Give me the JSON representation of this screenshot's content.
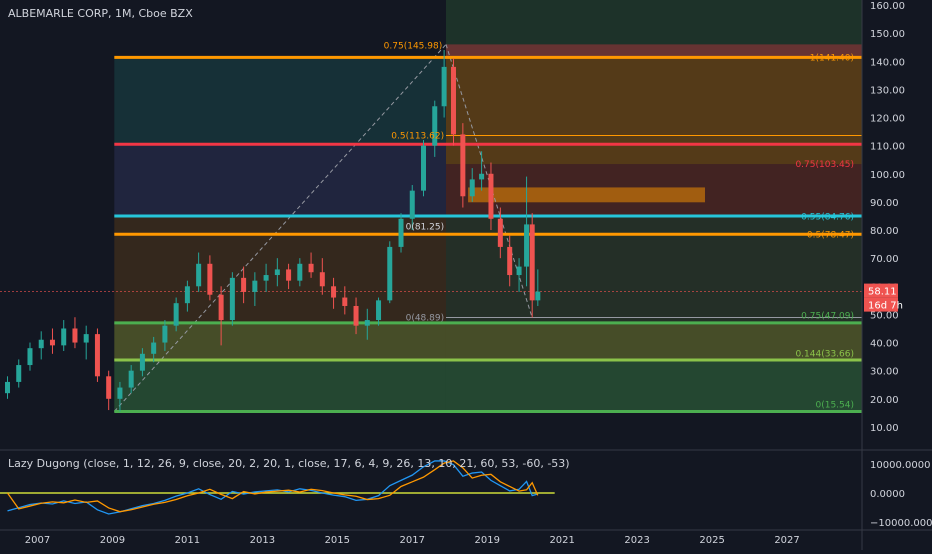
{
  "chart_title": "ALBEMARLE CORP, 1M, Cboe BZX",
  "indicator_title": "Lazy Dugong (close, 1, 12, 26, 9, close, 20, 2, 20, 1, close, 17, 6, 4, 9, 26, 13, 10, 21, 60, 53, -60, -53)",
  "price_badge": "58.11",
  "countdown_badge": "16d 7h",
  "colors": {
    "background": "#131722",
    "up": "#26a69a",
    "down": "#ef5350",
    "axis_text": "#d1d4dc",
    "fib_orange": "#ff9800",
    "red_level": "#f23645",
    "cyan_level": "#22ab94",
    "green_level": "#4caf50",
    "lime_level": "#8bc34a"
  },
  "chart_data": {
    "type": "candlestick",
    "y_axis": {
      "min": 5,
      "max": 160,
      "ticks": [
        "160.00",
        "150.00",
        "140.00",
        "130.00",
        "120.00",
        "110.00",
        "100.00",
        "90.00",
        "80.00",
        "70.00",
        "60.00",
        "50.00",
        "40.00",
        "30.00",
        "20.00",
        "10.00"
      ]
    },
    "x_axis": {
      "min": 2006.0,
      "max": 2029.0,
      "ticks": [
        "2007",
        "2009",
        "2011",
        "2013",
        "2015",
        "2017",
        "2019",
        "2021",
        "2023",
        "2025",
        "2027"
      ]
    },
    "fib_upper": {
      "label_left": "0.75(145.98)",
      "labels": [
        {
          "text": "1(141.40)",
          "value": 141.4
        },
        {
          "text": "0.5(113.62)",
          "value": 113.62
        },
        {
          "text": "0.75(103.45)",
          "value": 103.45
        },
        {
          "text": "0.55(84.76)",
          "value": 84.76
        },
        {
          "text": "0.5(78.47)",
          "value": 78.47
        },
        {
          "text": "0(81.25)",
          "value": 81.25
        },
        {
          "text": "0(48.89)",
          "value": 48.89
        }
      ]
    },
    "horizontal_levels": [
      {
        "value": 141.4,
        "color": "#ff9800"
      },
      {
        "value": 110.5,
        "color": "#f23645"
      },
      {
        "value": 85.0,
        "color": "#26c6da"
      },
      {
        "value": 78.5,
        "color": "#ff9800"
      },
      {
        "value": 47.0,
        "color": "#4caf50"
      },
      {
        "value": 33.8,
        "color": "#8bc34a"
      },
      {
        "value": 15.5,
        "color": "#4caf50"
      }
    ],
    "fib_lower_labels": [
      {
        "text": "0.75(47.09)",
        "value": 47.09
      },
      {
        "text": "0.144(33.66)",
        "value": 33.66
      },
      {
        "text": "0(15.54)",
        "value": 15.54
      }
    ],
    "series": [
      {
        "x": 2006.2,
        "o": 22,
        "h": 28,
        "l": 20,
        "c": 26
      },
      {
        "x": 2006.5,
        "o": 26,
        "h": 34,
        "l": 24,
        "c": 32
      },
      {
        "x": 2006.8,
        "o": 32,
        "h": 40,
        "l": 30,
        "c": 38
      },
      {
        "x": 2007.1,
        "o": 38,
        "h": 44,
        "l": 34,
        "c": 41
      },
      {
        "x": 2007.4,
        "o": 41,
        "h": 45,
        "l": 36,
        "c": 39
      },
      {
        "x": 2007.7,
        "o": 39,
        "h": 48,
        "l": 37,
        "c": 45
      },
      {
        "x": 2008.0,
        "o": 45,
        "h": 49,
        "l": 38,
        "c": 40
      },
      {
        "x": 2008.3,
        "o": 40,
        "h": 46,
        "l": 34,
        "c": 43
      },
      {
        "x": 2008.6,
        "o": 43,
        "h": 45,
        "l": 26,
        "c": 28
      },
      {
        "x": 2008.9,
        "o": 28,
        "h": 30,
        "l": 16,
        "c": 20
      },
      {
        "x": 2009.2,
        "o": 20,
        "h": 26,
        "l": 15.5,
        "c": 24
      },
      {
        "x": 2009.5,
        "o": 24,
        "h": 32,
        "l": 22,
        "c": 30
      },
      {
        "x": 2009.8,
        "o": 30,
        "h": 38,
        "l": 28,
        "c": 36
      },
      {
        "x": 2010.1,
        "o": 36,
        "h": 42,
        "l": 33,
        "c": 40
      },
      {
        "x": 2010.4,
        "o": 40,
        "h": 48,
        "l": 37,
        "c": 46
      },
      {
        "x": 2010.7,
        "o": 46,
        "h": 56,
        "l": 44,
        "c": 54
      },
      {
        "x": 2011.0,
        "o": 54,
        "h": 62,
        "l": 51,
        "c": 60
      },
      {
        "x": 2011.3,
        "o": 60,
        "h": 72,
        "l": 58,
        "c": 68
      },
      {
        "x": 2011.6,
        "o": 68,
        "h": 71,
        "l": 55,
        "c": 57
      },
      {
        "x": 2011.9,
        "o": 57,
        "h": 60,
        "l": 39,
        "c": 48
      },
      {
        "x": 2012.2,
        "o": 48,
        "h": 65,
        "l": 46,
        "c": 63
      },
      {
        "x": 2012.5,
        "o": 63,
        "h": 67,
        "l": 54,
        "c": 58
      },
      {
        "x": 2012.8,
        "o": 58,
        "h": 65,
        "l": 53,
        "c": 62
      },
      {
        "x": 2013.1,
        "o": 62,
        "h": 68,
        "l": 58,
        "c": 64
      },
      {
        "x": 2013.4,
        "o": 64,
        "h": 70,
        "l": 60,
        "c": 66
      },
      {
        "x": 2013.7,
        "o": 66,
        "h": 68,
        "l": 59,
        "c": 62
      },
      {
        "x": 2014.0,
        "o": 62,
        "h": 70,
        "l": 60,
        "c": 68
      },
      {
        "x": 2014.3,
        "o": 68,
        "h": 72,
        "l": 63,
        "c": 65
      },
      {
        "x": 2014.6,
        "o": 65,
        "h": 70,
        "l": 57,
        "c": 60
      },
      {
        "x": 2014.9,
        "o": 60,
        "h": 63,
        "l": 52,
        "c": 56
      },
      {
        "x": 2015.2,
        "o": 56,
        "h": 60,
        "l": 50,
        "c": 53
      },
      {
        "x": 2015.5,
        "o": 53,
        "h": 56,
        "l": 43,
        "c": 46
      },
      {
        "x": 2015.8,
        "o": 46,
        "h": 52,
        "l": 41,
        "c": 48
      },
      {
        "x": 2016.1,
        "o": 48,
        "h": 56,
        "l": 46,
        "c": 55
      },
      {
        "x": 2016.4,
        "o": 55,
        "h": 76,
        "l": 54,
        "c": 74
      },
      {
        "x": 2016.7,
        "o": 74,
        "h": 86,
        "l": 72,
        "c": 84
      },
      {
        "x": 2017.0,
        "o": 84,
        "h": 96,
        "l": 80,
        "c": 94
      },
      {
        "x": 2017.3,
        "o": 94,
        "h": 112,
        "l": 92,
        "c": 110
      },
      {
        "x": 2017.6,
        "o": 110,
        "h": 126,
        "l": 106,
        "c": 124
      },
      {
        "x": 2017.85,
        "o": 124,
        "h": 144,
        "l": 120,
        "c": 138
      },
      {
        "x": 2018.1,
        "o": 138,
        "h": 141,
        "l": 110,
        "c": 114
      },
      {
        "x": 2018.35,
        "o": 114,
        "h": 118,
        "l": 88,
        "c": 92
      },
      {
        "x": 2018.6,
        "o": 92,
        "h": 102,
        "l": 90,
        "c": 98
      },
      {
        "x": 2018.85,
        "o": 98,
        "h": 108,
        "l": 94,
        "c": 100
      },
      {
        "x": 2019.1,
        "o": 100,
        "h": 104,
        "l": 80,
        "c": 84
      },
      {
        "x": 2019.35,
        "o": 84,
        "h": 88,
        "l": 70,
        "c": 74
      },
      {
        "x": 2019.6,
        "o": 74,
        "h": 78,
        "l": 60,
        "c": 64
      },
      {
        "x": 2019.85,
        "o": 64,
        "h": 70,
        "l": 58,
        "c": 67
      },
      {
        "x": 2020.05,
        "o": 67,
        "h": 99,
        "l": 60,
        "c": 82
      },
      {
        "x": 2020.2,
        "o": 82,
        "h": 86,
        "l": 48.9,
        "c": 55
      },
      {
        "x": 2020.35,
        "o": 55,
        "h": 66,
        "l": 53,
        "c": 58.11
      }
    ],
    "indicator": {
      "y_ticks": [
        "10000.0000",
        "0.0000",
        "−10000.0000"
      ],
      "ylim": [
        -12000,
        12000
      ]
    }
  }
}
